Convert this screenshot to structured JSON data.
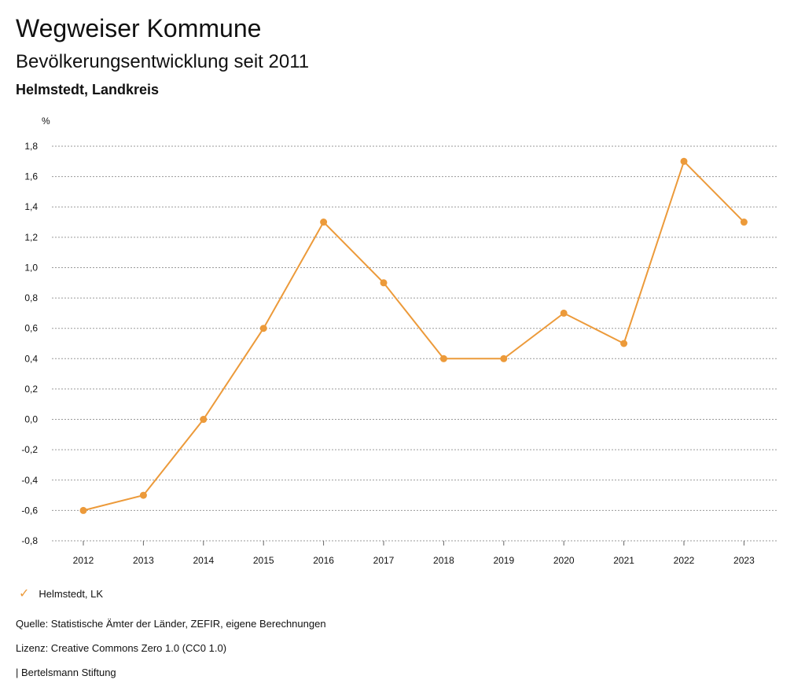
{
  "header": {
    "title": "Wegweiser Kommune",
    "subtitle": "Bevölkerungsentwicklung seit 2011",
    "region": "Helmstedt, Landkreis"
  },
  "chart_data": {
    "type": "line",
    "unit_label": "%",
    "x": [
      "2012",
      "2013",
      "2014",
      "2015",
      "2016",
      "2017",
      "2018",
      "2019",
      "2020",
      "2021",
      "2022",
      "2023"
    ],
    "series": [
      {
        "name": "Helmstedt, LK",
        "values": [
          -0.6,
          -0.5,
          0.0,
          0.6,
          1.3,
          0.9,
          0.4,
          0.4,
          0.7,
          0.5,
          1.7,
          1.3
        ]
      }
    ],
    "ylim": [
      -0.8,
      1.8
    ],
    "yticks": [
      1.8,
      1.6,
      1.4,
      1.2,
      1.0,
      0.8,
      0.6,
      0.4,
      0.2,
      0.0,
      -0.2,
      -0.4,
      -0.6,
      -0.8
    ],
    "ytick_labels": [
      "1,8",
      "1,6",
      "1,4",
      "1,2",
      "1,0",
      "0,8",
      "0,6",
      "0,4",
      "0,2",
      "0,0",
      "-0,2",
      "-0,4",
      "-0,6",
      "-0,8"
    ],
    "grid": true,
    "legend_position": "bottom-left",
    "line_color": "#ec9a3a"
  },
  "legend": {
    "label": "Helmstedt, LK"
  },
  "footer": {
    "source": "Quelle: Statistische Ämter der Länder, ZEFIR, eigene Berechnungen",
    "license": "Lizenz: Creative Commons Zero 1.0 (CC0 1.0)",
    "publisher": "| Bertelsmann Stiftung"
  }
}
